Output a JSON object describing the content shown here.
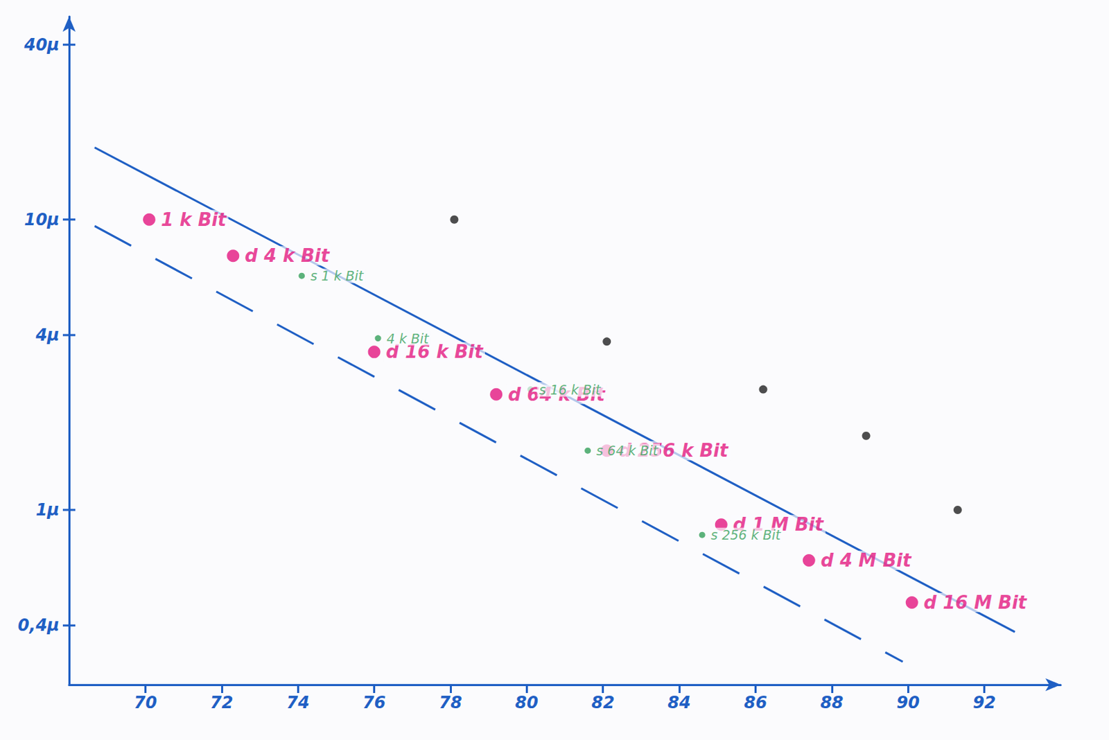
{
  "chart_data": {
    "type": "scatter",
    "log": "y",
    "grid": false,
    "xlim": [
      68,
      94
    ],
    "xticks": [
      70,
      72,
      74,
      76,
      78,
      80,
      82,
      84,
      86,
      88,
      90,
      92
    ],
    "ylim": [
      0.25,
      50
    ],
    "yticks": [
      {
        "value": 0.4,
        "label": "0,4µ"
      },
      {
        "value": 1,
        "label": "1µ"
      },
      {
        "value": 4,
        "label": "4µ"
      },
      {
        "value": 10,
        "label": "10µ"
      },
      {
        "value": 40,
        "label": "40µ"
      }
    ],
    "series": [
      {
        "type": "line",
        "color": "#1f5fc4",
        "line_style": "solid",
        "x": [
          68.67,
          92.8
        ],
        "values": [
          17.7,
          0.38
        ]
      },
      {
        "type": "line",
        "color": "#1f5fc4",
        "line_style": "dashed",
        "x": [
          68.67,
          89.86
        ],
        "values": [
          9.5,
          0.3
        ]
      },
      {
        "type": "scatter",
        "color": "#e3167f",
        "marker": "circle",
        "x": [
          70.1,
          72.3,
          76.0,
          79.2,
          82.1,
          85.1,
          87.4,
          90.1
        ],
        "values": [
          10,
          7.5,
          3.5,
          2.5,
          1.6,
          0.89,
          0.67,
          0.48
        ],
        "labels": [
          "1 k Bit",
          "d 4 k Bit",
          "d 16 k Bit",
          "d 64 k Bit",
          "d 256 k Bit",
          "d 1 M Bit",
          "d 4 M Bit",
          "d 16 M Bit"
        ]
      },
      {
        "type": "scatter",
        "color": "#35a05a",
        "marker": "circle",
        "x": [
          74.1,
          76.1,
          80.1,
          81.6,
          84.6
        ],
        "values": [
          6.4,
          3.9,
          2.6,
          1.6,
          0.82
        ],
        "labels": [
          "s 1 k Bit",
          "4 k Bit",
          "s 16 k Bit",
          "s 64 k Bit",
          "s 256 k Bit"
        ]
      },
      {
        "type": "scatter",
        "color": "#222222",
        "marker": "circle",
        "x": [
          78.1,
          82.1,
          86.2,
          88.9,
          91.3
        ],
        "values": [
          10,
          3.8,
          2.6,
          1.8,
          1.0
        ]
      }
    ]
  }
}
